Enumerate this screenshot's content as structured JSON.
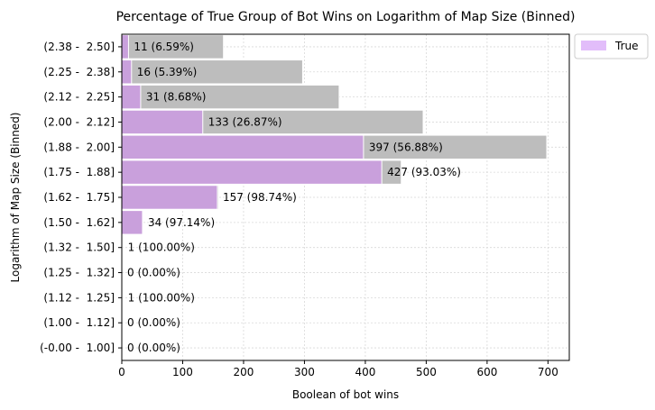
{
  "chart_data": {
    "type": "bar",
    "orientation": "horizontal",
    "title": "Percentage of True Group of Bot Wins on Logarithm of Map Size (Binned)",
    "xlabel": "Boolean of bot wins",
    "ylabel": "Logarithm of Map Size (Binned)",
    "xlim": [
      0,
      735
    ],
    "xticks": [
      0,
      100,
      200,
      300,
      400,
      500,
      600,
      700
    ],
    "grid": true,
    "legend_position": "upper-right-outside",
    "categories": [
      "(-0.00 -  1.00]",
      "(1.00 -  1.12]",
      "(1.12 -  1.25]",
      "(1.25 -  1.32]",
      "(1.32 -  1.50]",
      "(1.50 -  1.62]",
      "(1.62 -  1.75]",
      "(1.75 -  1.88]",
      "(1.88 -  2.00]",
      "(2.00 -  2.12]",
      "(2.12 -  2.25]",
      "(2.25 -  2.38]",
      "(2.38 -  2.50]"
    ],
    "series": [
      {
        "name": "",
        "role": "total",
        "color": "#bdbdbd",
        "values": [
          0,
          0,
          1,
          0,
          1,
          35,
          159,
          459,
          698,
          495,
          357,
          297,
          167
        ]
      },
      {
        "name": "True",
        "role": "true",
        "color": "#c9a0dc",
        "values": [
          0,
          0,
          1,
          0,
          1,
          34,
          157,
          427,
          397,
          133,
          31,
          16,
          11
        ]
      }
    ],
    "data_labels": [
      "0 (0.00%)",
      "0 (0.00%)",
      "1 (100.00%)",
      "0 (0.00%)",
      "1 (100.00%)",
      "34 (97.14%)",
      "157 (98.74%)",
      "427 (93.03%)",
      "397 (56.88%)",
      "133 (26.87%)",
      "31 (8.68%)",
      "16 (5.39%)",
      "11 (6.59%)"
    ],
    "legend": {
      "entries": [
        {
          "label": "True",
          "color": "#e2bdfa"
        }
      ]
    }
  }
}
